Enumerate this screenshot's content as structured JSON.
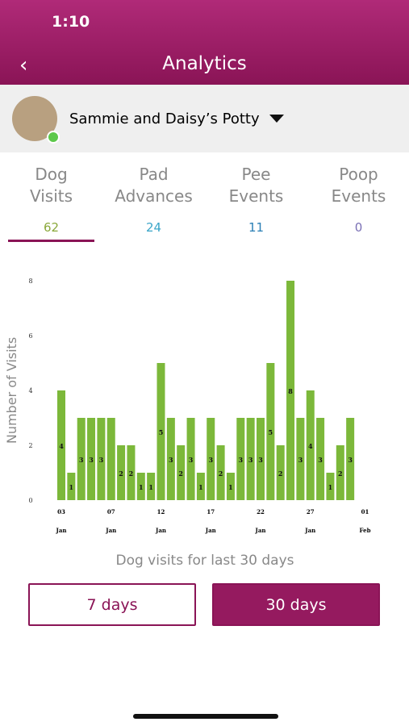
{
  "status_bar": {
    "time": "1:10"
  },
  "header": {
    "title": "Analytics"
  },
  "device": {
    "name": "Sammie and Daisy’s Potty"
  },
  "tabs": [
    {
      "label_line1": "Dog",
      "label_line2": "Visits",
      "count": 62,
      "color": "#8aa83a",
      "active": true
    },
    {
      "label_line1": "Pad",
      "label_line2": "Advances",
      "count": 24,
      "color": "#3aa5c8",
      "active": false
    },
    {
      "label_line1": "Pee",
      "label_line2": "Events",
      "count": 11,
      "color": "#2a7fb5",
      "active": false
    },
    {
      "label_line1": "Poop",
      "label_line2": "Events",
      "count": 0,
      "color": "#7a70b5",
      "active": false
    }
  ],
  "chart_data": {
    "type": "bar",
    "y_label": "Number of Visits",
    "caption": "Dog visits for last 30 days",
    "color": "#7cb83a",
    "categories": [
      "03",
      null,
      null,
      null,
      null,
      "07",
      null,
      null,
      null,
      null,
      "12",
      null,
      null,
      null,
      null,
      "17",
      null,
      null,
      null,
      null,
      "22",
      null,
      null,
      null,
      null,
      "27",
      null,
      null,
      null,
      null
    ],
    "category_months": [
      "Jan",
      null,
      null,
      null,
      null,
      "Jan",
      null,
      null,
      null,
      null,
      "Jan",
      null,
      null,
      null,
      null,
      "Jan",
      null,
      null,
      null,
      null,
      "Jan",
      null,
      null,
      null,
      null,
      "Jan",
      null,
      null,
      null,
      null
    ],
    "end_label_day": "01",
    "end_label_month": "Feb",
    "values": [
      4,
      1,
      3,
      3,
      3,
      3,
      2,
      2,
      1,
      1,
      5,
      3,
      2,
      3,
      1,
      3,
      2,
      1,
      3,
      3,
      3,
      5,
      2,
      8,
      3,
      4,
      3,
      1,
      2,
      3
    ],
    "value_labels": [
      "4",
      "1",
      "3",
      "3",
      "3",
      null,
      "2",
      "2",
      "1",
      "1",
      "5",
      "3",
      "2",
      "3",
      "1",
      "3",
      "2",
      "1",
      "3",
      "3",
      "3",
      "5",
      "2",
      "8",
      "3",
      "4",
      "3",
      "1",
      "2",
      "3"
    ],
    "ylim": [
      0,
      8
    ],
    "yticks": [
      0,
      2,
      4,
      6,
      8
    ]
  },
  "buttons": [
    {
      "label": "7 days",
      "selected": false
    },
    {
      "label": "30 days",
      "selected": true
    }
  ]
}
